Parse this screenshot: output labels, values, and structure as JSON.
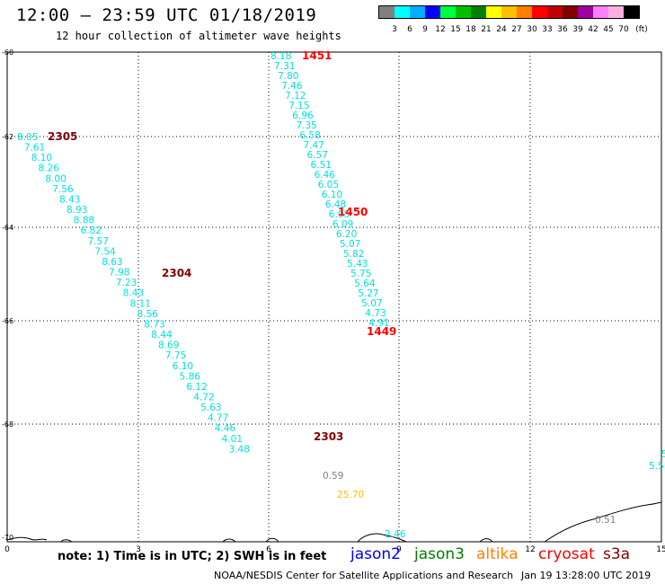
{
  "header": {
    "title": "12:00 – 23:59 UTC 01/18/2019",
    "subtitle": "12 hour collection of altimeter wave heights"
  },
  "legend": {
    "colors": [
      "#808080",
      "#00ffff",
      "#00b0ff",
      "#0000ff",
      "#00ff40",
      "#00c000",
      "#008000",
      "#ffff00",
      "#ffc000",
      "#ff8000",
      "#ff0000",
      "#c00000",
      "#800000",
      "#a000a0",
      "#ff80ff",
      "#ffb0e0",
      "#000000"
    ],
    "labels": [
      "3",
      "6",
      "9",
      "12",
      "15",
      "18",
      "21",
      "24",
      "27",
      "30",
      "33",
      "36",
      "39",
      "42",
      "45",
      "70",
      "(ft)"
    ]
  },
  "axes": {
    "x_ticks": [
      "0",
      "3",
      "6",
      "9",
      "12",
      "15"
    ],
    "y_ticks": [
      "-60",
      "-62",
      "-64",
      "-66",
      "-68",
      "-70"
    ]
  },
  "tracks": [
    {
      "name": "track-1451",
      "color": "#00e0e0",
      "values": [
        "8.18",
        "7.31",
        "7.80",
        "7.46",
        "7.12",
        "7.15",
        "6.96",
        "7.35",
        "6.58",
        "7.47",
        "6.57",
        "6.51",
        "6.46",
        "6.05",
        "6.10",
        "6.48",
        "6.05",
        "6.09",
        "6.20",
        "5.07",
        "5.82",
        "5.43",
        "5.75",
        "5.64",
        "5.27",
        "5.07",
        "4.73",
        "4.91"
      ],
      "time_labels": [
        {
          "text": "1451",
          "color": "#ff0000"
        },
        {
          "text": "1450",
          "color": "#ff0000"
        },
        {
          "text": "1449",
          "color": "#ff0000"
        }
      ]
    },
    {
      "name": "track-2305",
      "color": "#00e0e0",
      "values": [
        "8.05",
        "7.61",
        "8.10",
        "8.26",
        "8.00",
        "7.56",
        "8.43",
        "8.93",
        "8.88",
        "6.82",
        "7.57",
        "7.54",
        "8.63",
        "7.98",
        "7.23",
        "8.43",
        "8.11",
        "8.56",
        "8.73",
        "8.44",
        "8.69",
        "7.75",
        "6.10",
        "5.86",
        "6.12",
        "4.72",
        "5.63",
        "4.77",
        "4.46",
        "4.01",
        "3.48"
      ],
      "time_labels": [
        {
          "text": "2305",
          "color": "#800000"
        },
        {
          "text": "2304",
          "color": "#800000"
        },
        {
          "text": "2303",
          "color": "#800000"
        }
      ]
    }
  ],
  "extra_values": [
    {
      "text": "0.59",
      "color": "#808080"
    },
    {
      "text": "25.70",
      "color": "#ffc000"
    },
    {
      "text": "2.46",
      "color": "#00e0e0"
    },
    {
      "text": "0.51",
      "color": "#808080"
    },
    {
      "text": "5.5",
      "color": "#00e0e0"
    },
    {
      "text": "5",
      "color": "#00e0e0"
    }
  ],
  "note": "note: 1) Time is in UTC; 2) SWH is in feet",
  "satellites": [
    {
      "name": "jason2",
      "color": "#0000ff"
    },
    {
      "name": "jason3",
      "color": "#008000"
    },
    {
      "name": "altika",
      "color": "#ff8000"
    },
    {
      "name": "cryosat",
      "color": "#ff0000"
    },
    {
      "name": "s3a",
      "color": "#800000"
    }
  ],
  "footer": {
    "credit": "NOAA/NESDIS Center for Satellite Applications and Research",
    "timestamp": "Jan 19 13:28:00 UTC 2019"
  }
}
